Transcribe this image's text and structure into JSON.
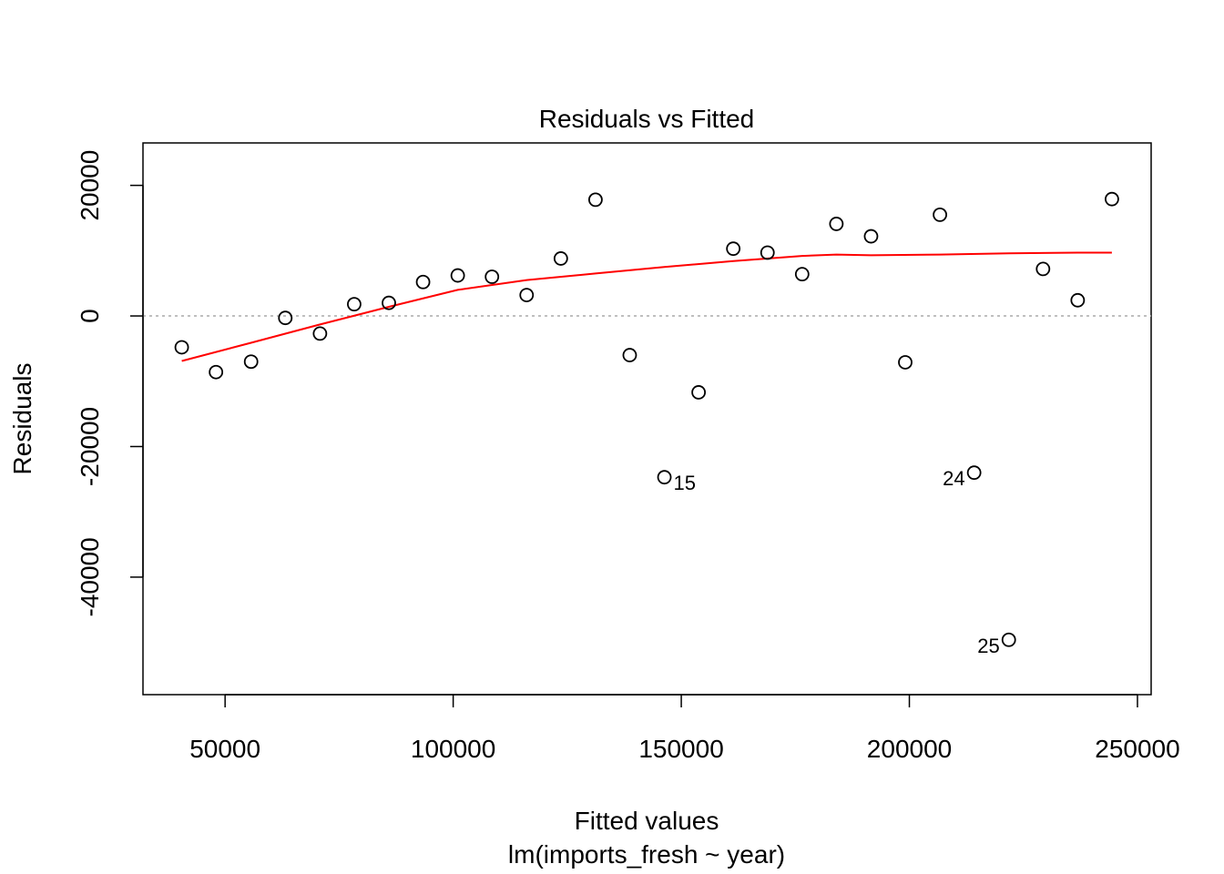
{
  "chart_data": {
    "type": "scatter",
    "title": "Residuals vs Fitted",
    "xlabel": "Fitted values",
    "subtitle": "lm(imports_fresh ~ year)",
    "ylabel": "Residuals",
    "xlim": [
      32000,
      253000
    ],
    "ylim": [
      -58000,
      26500
    ],
    "x_ticks": [
      50000,
      100000,
      150000,
      200000,
      250000
    ],
    "x_tick_labels": [
      "50000",
      "100000",
      "150000",
      "200000",
      "250000"
    ],
    "y_ticks": [
      -40000,
      -20000,
      0,
      20000
    ],
    "y_tick_labels": [
      "-40000",
      "-20000",
      "0",
      "20000"
    ],
    "grid": false,
    "reference_line_y": 0,
    "points": [
      {
        "x": 40500,
        "y": -4800
      },
      {
        "x": 48000,
        "y": -8600
      },
      {
        "x": 55700,
        "y": -7000
      },
      {
        "x": 63200,
        "y": -300
      },
      {
        "x": 70800,
        "y": -2700
      },
      {
        "x": 78300,
        "y": 1800
      },
      {
        "x": 85900,
        "y": 2000
      },
      {
        "x": 93400,
        "y": 5200
      },
      {
        "x": 101000,
        "y": 6200
      },
      {
        "x": 108500,
        "y": 6000
      },
      {
        "x": 116100,
        "y": 3200
      },
      {
        "x": 123600,
        "y": 8800
      },
      {
        "x": 131200,
        "y": 17800
      },
      {
        "x": 138700,
        "y": -6000
      },
      {
        "x": 146300,
        "y": -24700,
        "label": "15",
        "label_side": "right"
      },
      {
        "x": 153800,
        "y": -11700
      },
      {
        "x": 161400,
        "y": 10300
      },
      {
        "x": 168900,
        "y": 9700
      },
      {
        "x": 176500,
        "y": 6400
      },
      {
        "x": 184000,
        "y": 14100
      },
      {
        "x": 191600,
        "y": 12200
      },
      {
        "x": 199100,
        "y": -7100
      },
      {
        "x": 206700,
        "y": 15500
      },
      {
        "x": 214200,
        "y": -24000,
        "label": "24",
        "label_side": "left"
      },
      {
        "x": 221800,
        "y": -49600,
        "label": "25",
        "label_side": "left"
      },
      {
        "x": 229300,
        "y": 7200
      },
      {
        "x": 236900,
        "y": 2400
      },
      {
        "x": 244400,
        "y": 17900
      }
    ],
    "smoother": {
      "color": "#ff0000",
      "x": [
        40500,
        55700,
        70800,
        85900,
        101000,
        116100,
        131200,
        146300,
        161400,
        176500,
        184000,
        191600,
        206700,
        221800,
        236900,
        244400
      ],
      "y": [
        -6900,
        -4100,
        -1300,
        1400,
        4000,
        5500,
        6500,
        7500,
        8400,
        9200,
        9400,
        9300,
        9400,
        9600,
        9700,
        9700
      ]
    }
  }
}
